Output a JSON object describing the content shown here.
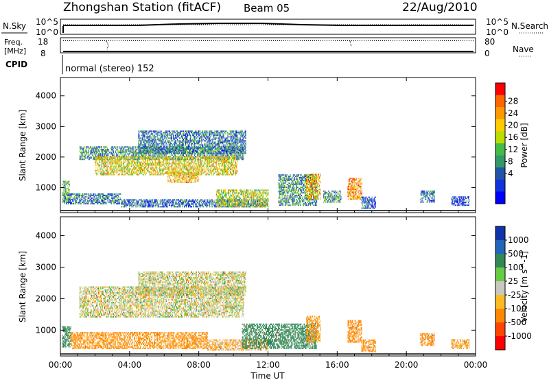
{
  "header": {
    "station": "Zhongshan Station (fitACF)",
    "beam": "Beam 05",
    "date": "22/Aug/2010"
  },
  "params": {
    "nsky_label": "N.Sky",
    "nsky_top": "10^5",
    "nsky_bottom": "10^0",
    "nsearch_label": "N.Search",
    "nsearch_top": "10^5",
    "nsearch_bottom": "10^0",
    "freq_label": "Freq.",
    "freq_unit": "[MHz]",
    "freq_top": "18",
    "freq_bottom": "8",
    "nave_label": "Nave",
    "nave_top": "80",
    "nave_bottom": "0",
    "cpid_label": "CPID",
    "cpid_text": "normal (stereo) 152"
  },
  "chart_data": [
    {
      "type": "heatmap",
      "name": "power",
      "ylabel": "Slant Range [km]",
      "xlabel": "",
      "ylim": [
        180,
        4600
      ],
      "yticks": [
        "4000",
        "3000",
        "2000",
        "1000"
      ],
      "ytick_values": [
        4000,
        3000,
        2000,
        1000
      ],
      "colorbar_label": "Power [dB]",
      "colorbar_ticks": [
        "28",
        "24",
        "20",
        "16",
        "12",
        "8",
        "4"
      ],
      "colorbar_tick_values": [
        28,
        24,
        20,
        16,
        12,
        8,
        4
      ],
      "colorbar_colors": [
        "#ff0000",
        "#ff6600",
        "#ff9900",
        "#ffcc00",
        "#bbdd00",
        "#44bb44",
        "#339966",
        "#2255aa",
        "#1133dd",
        "#0000ff"
      ],
      "regions": [
        {
          "x0": 1.1,
          "x1": 10.6,
          "y0": 1900,
          "y1": 2350,
          "power": 12
        },
        {
          "x0": 2.0,
          "x1": 10.2,
          "y0": 1400,
          "y1": 2000,
          "power": 20
        },
        {
          "x0": 4.5,
          "x1": 10.7,
          "y0": 2100,
          "y1": 2850,
          "power": 10
        },
        {
          "x0": 6.2,
          "x1": 8.0,
          "y0": 1150,
          "y1": 1500,
          "power": 22
        },
        {
          "x0": 0.1,
          "x1": 0.5,
          "y0": 500,
          "y1": 1200,
          "power": 14
        },
        {
          "x0": 0.2,
          "x1": 3.5,
          "y0": 450,
          "y1": 800,
          "power": 10
        },
        {
          "x0": 3.5,
          "x1": 12.0,
          "y0": 350,
          "y1": 600,
          "power": 9
        },
        {
          "x0": 9.0,
          "x1": 12.0,
          "y0": 350,
          "y1": 900,
          "power": 18
        },
        {
          "x0": 12.6,
          "x1": 14.8,
          "y0": 400,
          "y1": 1400,
          "power": 12
        },
        {
          "x0": 14.2,
          "x1": 15.0,
          "y0": 600,
          "y1": 1450,
          "power": 22
        },
        {
          "x0": 15.2,
          "x1": 16.2,
          "y0": 500,
          "y1": 900,
          "power": 12
        },
        {
          "x0": 16.6,
          "x1": 17.4,
          "y0": 600,
          "y1": 1300,
          "power": 24
        },
        {
          "x0": 17.4,
          "x1": 18.2,
          "y0": 300,
          "y1": 700,
          "power": 8
        },
        {
          "x0": 20.8,
          "x1": 21.6,
          "y0": 500,
          "y1": 900,
          "power": 9
        },
        {
          "x0": 22.6,
          "x1": 23.6,
          "y0": 400,
          "y1": 700,
          "power": 6
        }
      ]
    },
    {
      "type": "heatmap",
      "name": "velocity",
      "ylabel": "Slant Range [km]",
      "xlabel": "Time UT",
      "ylim": [
        180,
        4600
      ],
      "xlim": [
        0,
        24
      ],
      "yticks": [
        "4000",
        "3000",
        "2000",
        "1000"
      ],
      "ytick_values": [
        4000,
        3000,
        2000,
        1000
      ],
      "xticks": [
        "00:00",
        "04:00",
        "08:00",
        "12:00",
        "16:00",
        "20:00",
        "00:00"
      ],
      "xtick_values": [
        0,
        4,
        8,
        12,
        16,
        20,
        24
      ],
      "colorbar_label": "Velocity [m s^-1]",
      "colorbar_ticks": [
        "1000",
        "500",
        "100",
        "25",
        "-25",
        "-100",
        "-500",
        "-1000"
      ],
      "colorbar_tick_values": [
        1000,
        500,
        100,
        25,
        -25,
        -100,
        -500,
        -1000
      ],
      "colorbar_colors": [
        "#1133aa",
        "#2266bb",
        "#338855",
        "#66cc44",
        "#c8c8c0",
        "#ffbb22",
        "#ff8800",
        "#ff4400",
        "#ff0000"
      ],
      "regions": [
        {
          "x0": 1.1,
          "x1": 10.6,
          "y0": 1400,
          "y1": 2350,
          "velocity": 0
        },
        {
          "x0": 4.5,
          "x1": 10.7,
          "y0": 2100,
          "y1": 2850,
          "velocity": 0
        },
        {
          "x0": 0.1,
          "x1": 0.6,
          "y0": 450,
          "y1": 1100,
          "velocity": 150
        },
        {
          "x0": 0.6,
          "x1": 8.5,
          "y0": 400,
          "y1": 900,
          "velocity": -100
        },
        {
          "x0": 8.5,
          "x1": 12.0,
          "y0": 350,
          "y1": 700,
          "velocity": -50
        },
        {
          "x0": 10.5,
          "x1": 14.8,
          "y0": 400,
          "y1": 1200,
          "velocity": 150
        },
        {
          "x0": 14.2,
          "x1": 15.0,
          "y0": 600,
          "y1": 1450,
          "velocity": -80
        },
        {
          "x0": 16.6,
          "x1": 17.4,
          "y0": 600,
          "y1": 1300,
          "velocity": -200
        },
        {
          "x0": 17.4,
          "x1": 18.2,
          "y0": 300,
          "y1": 700,
          "velocity": -120
        },
        {
          "x0": 20.8,
          "x1": 21.6,
          "y0": 500,
          "y1": 900,
          "velocity": -150
        },
        {
          "x0": 22.6,
          "x1": 23.6,
          "y0": 400,
          "y1": 700,
          "velocity": -80
        }
      ]
    }
  ]
}
